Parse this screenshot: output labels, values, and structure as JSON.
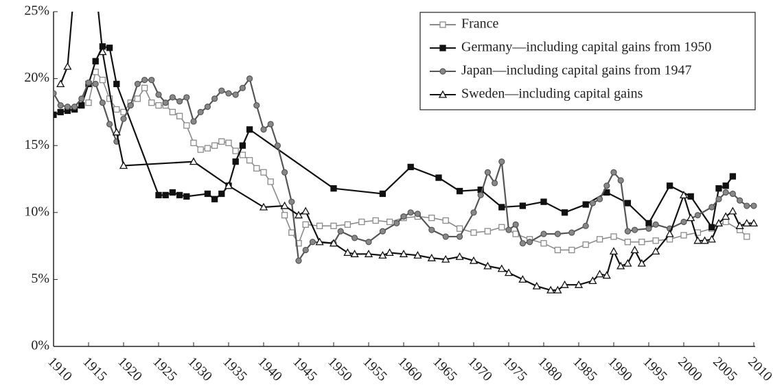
{
  "chart_data": {
    "type": "line",
    "xlim": [
      1910,
      2010
    ],
    "xticks": [
      1910,
      1915,
      1920,
      1925,
      1930,
      1935,
      1940,
      1945,
      1950,
      1955,
      1960,
      1965,
      1970,
      1975,
      1980,
      1985,
      1990,
      1995,
      2000,
      2005,
      2010
    ],
    "ylim": [
      0,
      25
    ],
    "yticks": [
      {
        "value": 0,
        "label": "0%"
      },
      {
        "value": 5,
        "label": "5%"
      },
      {
        "value": 10,
        "label": "10%"
      },
      {
        "value": 15,
        "label": "15%"
      },
      {
        "value": 20,
        "label": "20%"
      },
      {
        "value": 25,
        "label": "25%"
      }
    ],
    "legend": "upper-right",
    "series": [
      {
        "name": "France",
        "color": "#8a8a8a",
        "marker": "square-open",
        "x": [
          1915,
          1916,
          1917,
          1918,
          1919,
          1920,
          1921,
          1922,
          1923,
          1924,
          1925,
          1926,
          1927,
          1928,
          1929,
          1930,
          1931,
          1932,
          1933,
          1934,
          1935,
          1936,
          1937,
          1938,
          1939,
          1940,
          1941,
          1943,
          1944,
          1945,
          1946,
          1948,
          1950,
          1952,
          1954,
          1956,
          1958,
          1960,
          1962,
          1964,
          1966,
          1968,
          1970,
          1972,
          1974,
          1976,
          1978,
          1980,
          1982,
          1984,
          1986,
          1988,
          1990,
          1992,
          1994,
          1996,
          1998,
          2000,
          2002,
          2004,
          2006,
          2008,
          2009
        ],
        "values": [
          18.2,
          20.5,
          19.9,
          18.5,
          17.7,
          17.5,
          18.2,
          18.5,
          19.3,
          18.2,
          18.0,
          18.0,
          17.5,
          17.2,
          16.5,
          15.2,
          14.7,
          14.8,
          15.0,
          15.3,
          15.2,
          14.6,
          14.3,
          13.9,
          13.3,
          13.0,
          12.3,
          9.8,
          8.5,
          7.7,
          9.1,
          9.0,
          9.0,
          9.1,
          9.3,
          9.4,
          9.3,
          9.6,
          9.7,
          9.6,
          9.4,
          8.8,
          8.5,
          8.6,
          8.9,
          8.4,
          8.0,
          7.7,
          7.2,
          7.2,
          7.6,
          8.0,
          8.2,
          7.8,
          7.8,
          7.9,
          8.0,
          8.3,
          8.5,
          8.8,
          9.3,
          8.7,
          8.2
        ]
      },
      {
        "name": "Germany—including capital gains from 1950",
        "color": "#111111",
        "marker": "square",
        "x": [
          1910,
          1911,
          1912,
          1913,
          1914,
          1915,
          1916,
          1917,
          1918,
          1919,
          1925,
          1926,
          1927,
          1928,
          1929,
          1932,
          1933,
          1934,
          1935,
          1936,
          1937,
          1938,
          1950,
          1957,
          1961,
          1965,
          1968,
          1971,
          1974,
          1977,
          1980,
          1983,
          1986,
          1989,
          1992,
          1995,
          1998,
          2001,
          2004,
          2005,
          2006,
          2007
        ],
        "values": [
          17.3,
          17.5,
          17.6,
          17.7,
          18.0,
          19.6,
          21.3,
          22.4,
          22.3,
          19.6,
          11.3,
          11.3,
          11.5,
          11.3,
          11.2,
          11.4,
          11.0,
          11.4,
          12.0,
          13.8,
          15.0,
          16.2,
          11.8,
          11.4,
          13.4,
          12.6,
          11.6,
          11.7,
          10.4,
          10.5,
          10.8,
          10.0,
          10.6,
          11.5,
          10.7,
          9.2,
          12.0,
          11.2,
          8.9,
          11.8,
          12.0,
          12.7
        ]
      },
      {
        "name": "Japan—including capital gains from 1947",
        "color": "#555555",
        "marker": "circle",
        "x": [
          1910,
          1911,
          1912,
          1913,
          1914,
          1915,
          1916,
          1917,
          1918,
          1919,
          1920,
          1921,
          1922,
          1923,
          1924,
          1925,
          1926,
          1927,
          1928,
          1929,
          1930,
          1931,
          1932,
          1933,
          1934,
          1935,
          1936,
          1937,
          1938,
          1939,
          1940,
          1941,
          1942,
          1943,
          1944,
          1945,
          1946,
          1947,
          1950,
          1951,
          1953,
          1955,
          1957,
          1959,
          1960,
          1961,
          1962,
          1964,
          1966,
          1968,
          1970,
          1971,
          1972,
          1973,
          1974,
          1975,
          1976,
          1977,
          1978,
          1980,
          1982,
          1984,
          1986,
          1987,
          1988,
          1989,
          1990,
          1991,
          1992,
          1993,
          1995,
          1996,
          1998,
          2000,
          2002,
          2004,
          2005,
          2006,
          2007,
          2008,
          2009,
          2010
        ],
        "values": [
          18.9,
          18.0,
          17.9,
          17.9,
          18.5,
          19.7,
          19.6,
          18.2,
          16.6,
          15.3,
          17.0,
          18.0,
          19.6,
          19.9,
          19.9,
          18.8,
          18.2,
          18.6,
          18.3,
          18.6,
          16.8,
          17.5,
          17.9,
          18.5,
          19.1,
          18.9,
          18.8,
          19.3,
          20.0,
          18.0,
          16.2,
          16.6,
          15.0,
          13.0,
          10.8,
          6.4,
          7.2,
          7.8,
          7.7,
          8.6,
          8.1,
          7.8,
          8.6,
          9.2,
          9.7,
          10.0,
          9.9,
          8.7,
          8.2,
          8.2,
          10.0,
          11.3,
          13.0,
          12.2,
          13.8,
          8.7,
          9.1,
          7.7,
          7.8,
          8.4,
          8.4,
          8.5,
          9.0,
          10.7,
          11.0,
          12.0,
          13.0,
          12.4,
          8.6,
          8.7,
          8.8,
          9.1,
          8.8,
          9.3,
          9.8,
          10.4,
          11.0,
          11.5,
          11.4,
          10.9,
          10.5,
          10.5
        ]
      },
      {
        "name": "Sweden—including capital gains",
        "color": "#111111",
        "marker": "triangle-open",
        "x": [
          1911,
          1912,
          1913,
          1916,
          1917,
          1919,
          1920,
          1930,
          1935,
          1940,
          1943,
          1945,
          1946,
          1948,
          1950,
          1952,
          1953,
          1955,
          1957,
          1958,
          1960,
          1962,
          1964,
          1966,
          1968,
          1970,
          1972,
          1974,
          1975,
          1977,
          1979,
          1981,
          1982,
          1983,
          1985,
          1987,
          1988,
          1989,
          1990,
          1991,
          1992,
          1993,
          1994,
          1996,
          1998,
          2000,
          2001,
          2002,
          2003,
          2004,
          2005,
          2006,
          2007,
          2008,
          2009,
          2010
        ],
        "values": [
          19.6,
          20.9,
          27,
          27,
          22,
          16,
          13.5,
          13.8,
          12.0,
          10.4,
          10.5,
          9.8,
          10.1,
          7.8,
          7.7,
          7.0,
          6.9,
          6.9,
          6.8,
          7.0,
          6.9,
          6.8,
          6.6,
          6.5,
          6.7,
          6.4,
          6.0,
          5.8,
          5.5,
          5.0,
          4.5,
          4.2,
          4.2,
          4.6,
          4.6,
          4.9,
          5.4,
          5.3,
          7.1,
          6.0,
          6.2,
          7.2,
          6.2,
          7.1,
          8.4,
          11.3,
          9.6,
          7.9,
          7.9,
          8.0,
          9.2,
          9.7,
          10.1,
          9.0,
          9.2,
          9.2
        ]
      }
    ]
  }
}
